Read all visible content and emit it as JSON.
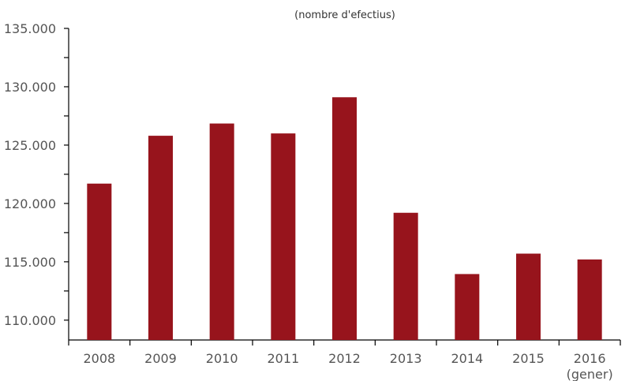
{
  "chart_data": {
    "type": "bar",
    "title": "",
    "subtitle": "(nombre d'efectius)",
    "xlabel": "",
    "ylabel": "",
    "categories": [
      "2008",
      "2009",
      "2010",
      "2011",
      "2012",
      "2013",
      "2014",
      "2015",
      "2016"
    ],
    "category_sublabels": [
      "",
      "",
      "",
      "",
      "",
      "",
      "",
      "",
      "(gener)"
    ],
    "values": [
      121700,
      125800,
      126850,
      126000,
      129100,
      119200,
      113950,
      115700,
      115200
    ],
    "ylim": [
      108300,
      135000
    ],
    "yticks": [
      110000,
      115000,
      120000,
      125000,
      130000,
      135000
    ],
    "ytick_labels": [
      "110.000",
      "115.000",
      "120.000",
      "125.000",
      "130.000",
      "135.000"
    ],
    "grid": false,
    "legend": "none",
    "bar_color": "#97141c",
    "axis_color": "#000000"
  }
}
